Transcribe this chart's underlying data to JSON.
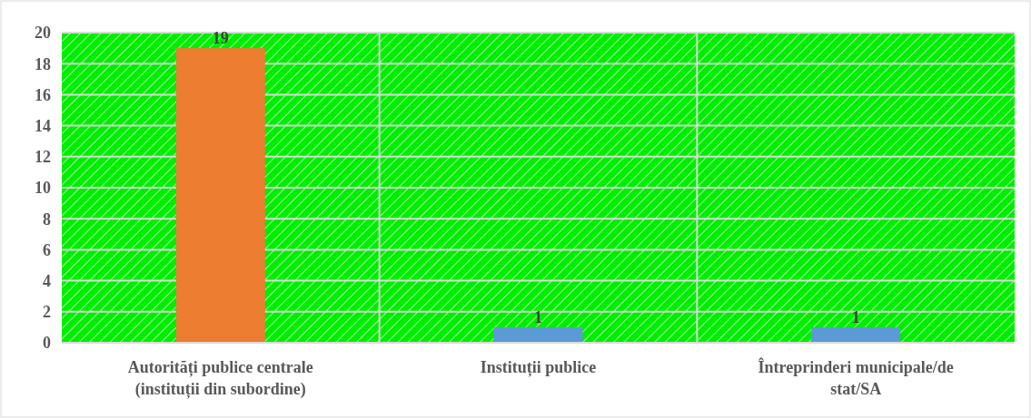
{
  "chart_data": {
    "type": "bar",
    "categories": [
      "Autorități publice centrale (instituții din subordine)",
      "Instituții publice",
      "Întreprinderi municipale/de stat/SA"
    ],
    "values": [
      19,
      1,
      1
    ],
    "colors": [
      "#ed7d31",
      "#5b9bd5",
      "#5b9bd5"
    ],
    "ylim": [
      0,
      20
    ],
    "yticks": [
      0,
      2,
      4,
      6,
      8,
      10,
      12,
      14,
      16,
      18,
      20
    ],
    "grid": true,
    "data_labels": true
  }
}
